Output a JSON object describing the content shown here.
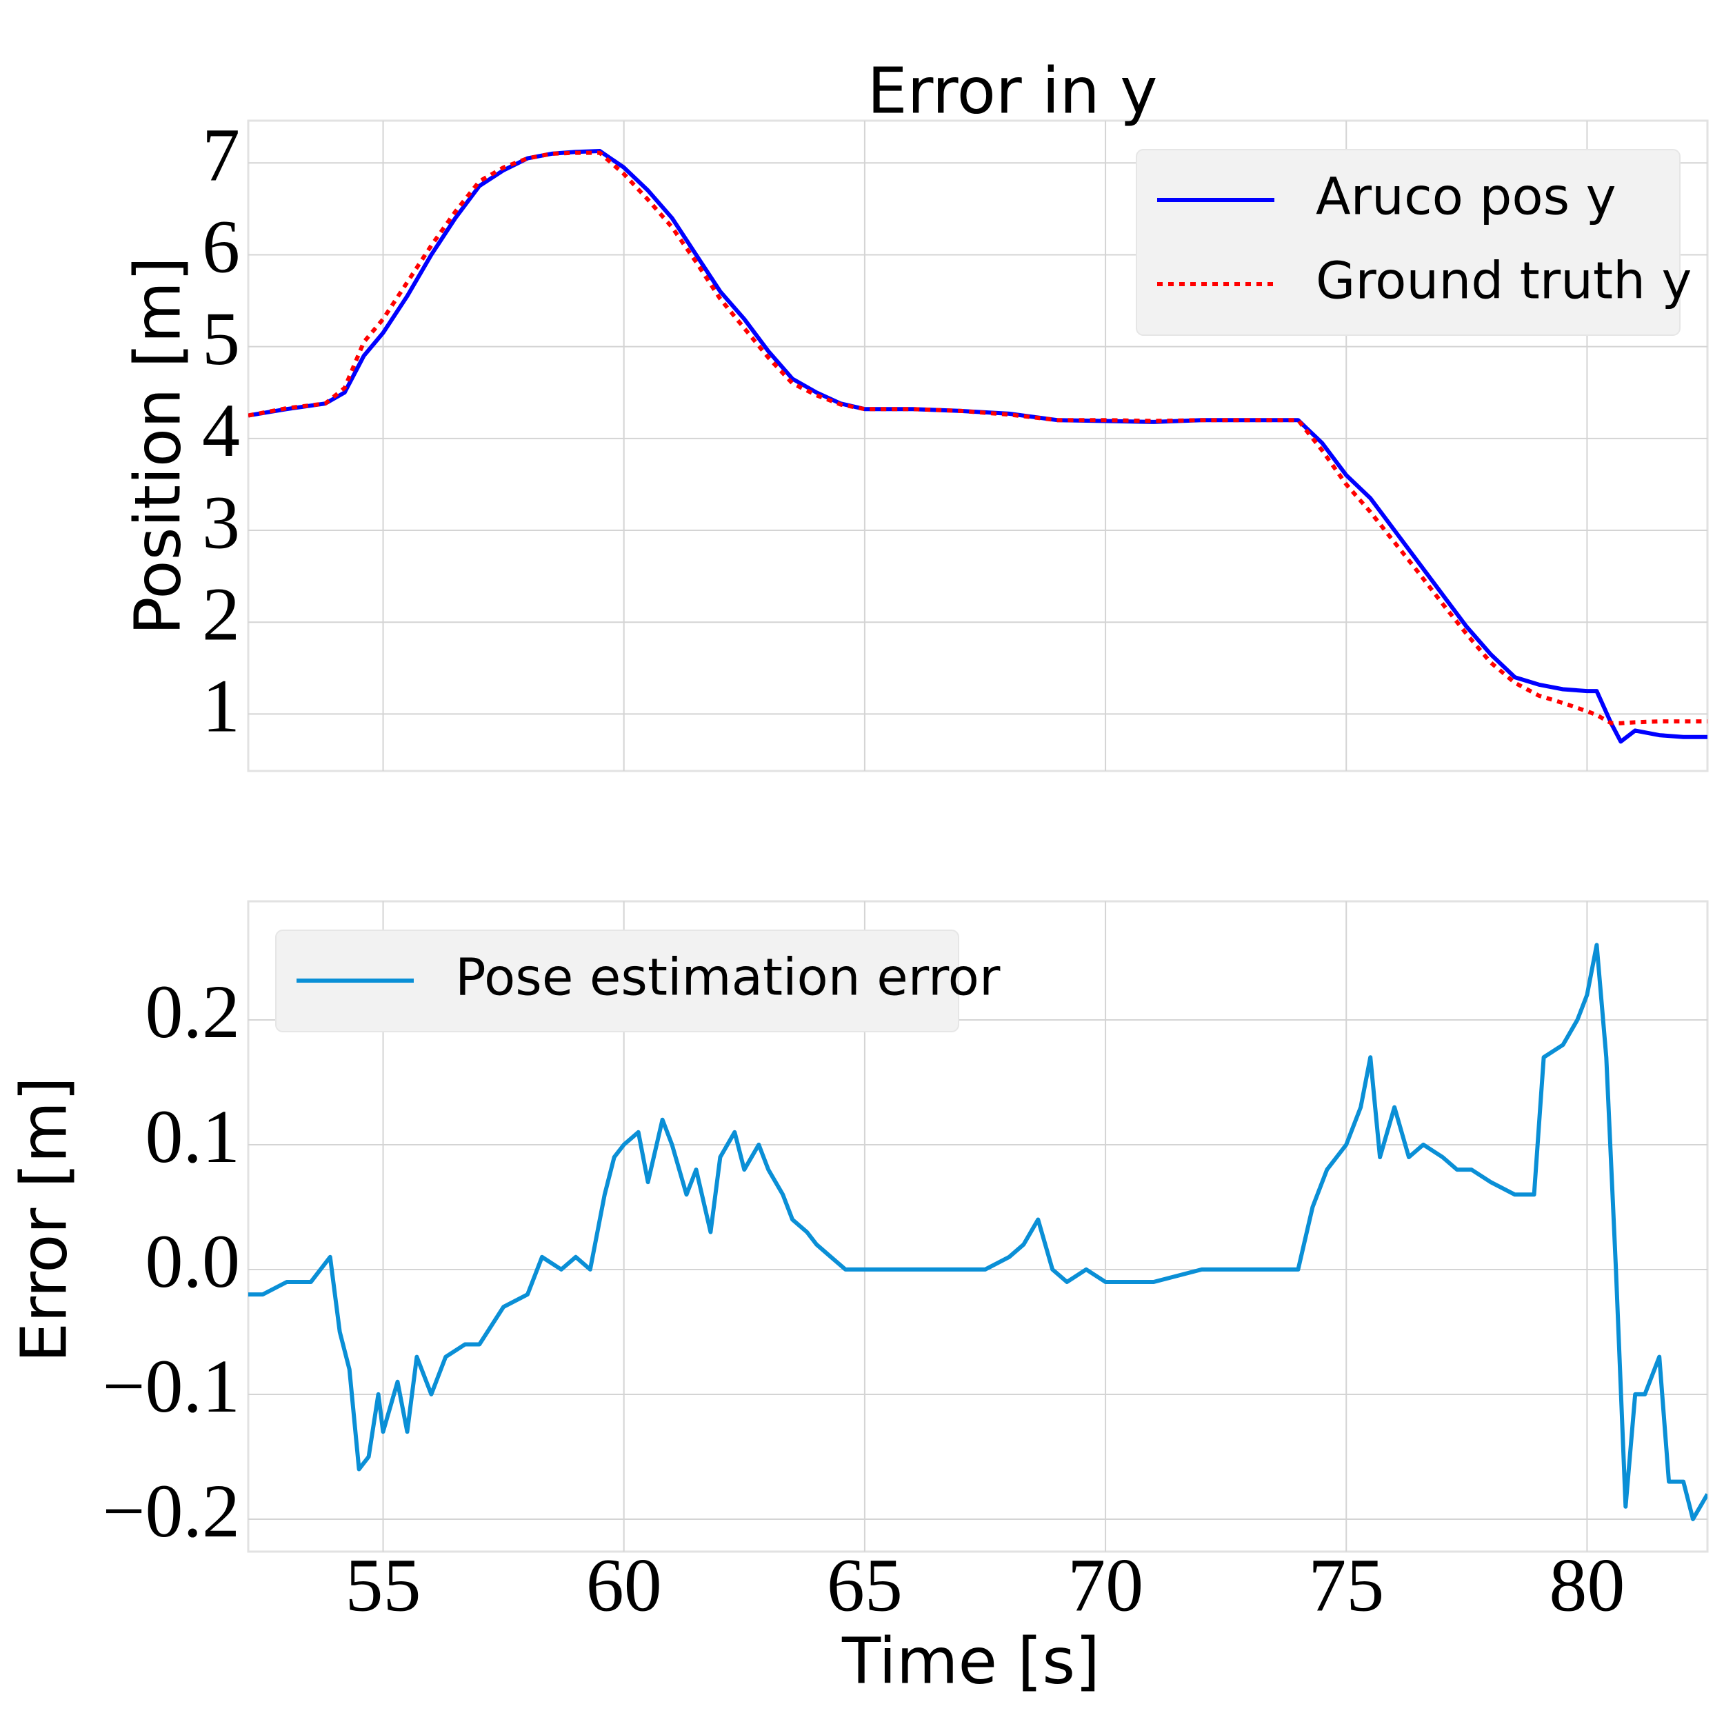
{
  "chart_data": [
    {
      "type": "line",
      "title": "Error in y",
      "ylabel": "Position [m]",
      "x": [
        52.2,
        53,
        53.8,
        54.2,
        54.6,
        55,
        55.5,
        56,
        56.5,
        57,
        57.5,
        58,
        58.5,
        59,
        59.5,
        60,
        60.5,
        61,
        61.5,
        62,
        62.5,
        63,
        63.5,
        64,
        64.5,
        65,
        66,
        67,
        68,
        69,
        70,
        71,
        72,
        73,
        74,
        74.5,
        75,
        75.5,
        76,
        76.5,
        77,
        77.5,
        78,
        78.5,
        79,
        79.5,
        80,
        80.2,
        80.5,
        80.7,
        81,
        81.5,
        82,
        82.5
      ],
      "series": [
        {
          "name": "Aruco pos y",
          "color": "#0000ff",
          "linestyle": "solid",
          "values": [
            4.25,
            4.32,
            4.38,
            4.5,
            4.9,
            5.15,
            5.55,
            6.0,
            6.4,
            6.75,
            6.92,
            7.05,
            7.1,
            7.12,
            7.13,
            6.95,
            6.7,
            6.4,
            6.0,
            5.6,
            5.3,
            4.95,
            4.65,
            4.5,
            4.38,
            4.32,
            4.32,
            4.3,
            4.27,
            4.2,
            4.19,
            4.18,
            4.2,
            4.2,
            4.2,
            3.95,
            3.6,
            3.35,
            3.0,
            2.65,
            2.3,
            1.95,
            1.65,
            1.4,
            1.32,
            1.27,
            1.25,
            1.25,
            0.9,
            0.7,
            0.82,
            0.77,
            0.75,
            0.75
          ]
        },
        {
          "name": "Ground truth y",
          "color": "#ff0000",
          "linestyle": "dotted",
          "values": [
            4.25,
            4.33,
            4.38,
            4.55,
            5.05,
            5.3,
            5.7,
            6.1,
            6.47,
            6.8,
            6.95,
            7.05,
            7.1,
            7.11,
            7.11,
            6.88,
            6.6,
            6.3,
            5.92,
            5.52,
            5.2,
            4.88,
            4.6,
            4.47,
            4.37,
            4.32,
            4.32,
            4.3,
            4.26,
            4.2,
            4.2,
            4.19,
            4.2,
            4.2,
            4.2,
            3.87,
            3.5,
            3.2,
            2.87,
            2.54,
            2.2,
            1.87,
            1.56,
            1.34,
            1.2,
            1.12,
            1.03,
            0.99,
            0.9,
            0.9,
            0.91,
            0.92,
            0.92,
            0.92
          ]
        }
      ],
      "xlim": [
        52.2,
        82.5
      ],
      "xticks": [
        55,
        60,
        65,
        70,
        75,
        80
      ],
      "show_xtick_labels": false,
      "ylim": [
        0.38,
        7.46
      ],
      "yticks": [
        1,
        2,
        3,
        4,
        5,
        6,
        7
      ],
      "grid": true,
      "legend": "upper right"
    },
    {
      "type": "line",
      "xlabel": "Time [s]",
      "ylabel": "Error [m]",
      "x": [
        52.2,
        52.5,
        53,
        53.5,
        53.9,
        54.1,
        54.3,
        54.5,
        54.7,
        54.9,
        55,
        55.3,
        55.5,
        55.7,
        56,
        56.3,
        56.7,
        57,
        57.5,
        58,
        58.3,
        58.7,
        59,
        59.3,
        59.6,
        59.8,
        60,
        60.3,
        60.5,
        60.8,
        61,
        61.3,
        61.5,
        61.8,
        62,
        62.3,
        62.5,
        62.8,
        63,
        63.3,
        63.5,
        63.8,
        64,
        64.3,
        64.6,
        65,
        66,
        67,
        67.5,
        68,
        68.3,
        68.6,
        68.9,
        69.2,
        69.6,
        70,
        71,
        72,
        73,
        74,
        74.3,
        74.6,
        75,
        75.3,
        75.5,
        75.7,
        76,
        76.3,
        76.6,
        77,
        77.3,
        77.6,
        78,
        78.5,
        78.9,
        79.1,
        79.5,
        79.8,
        80,
        80.2,
        80.4,
        80.6,
        80.8,
        81,
        81.2,
        81.5,
        81.7,
        82,
        82.2,
        82.5
      ],
      "series": [
        {
          "name": "Pose estimation error",
          "color": "#0a8fd6",
          "linestyle": "solid",
          "values": [
            -0.02,
            -0.02,
            -0.01,
            -0.01,
            0.01,
            -0.05,
            -0.08,
            -0.16,
            -0.15,
            -0.1,
            -0.13,
            -0.09,
            -0.13,
            -0.07,
            -0.1,
            -0.07,
            -0.06,
            -0.06,
            -0.03,
            -0.02,
            0.01,
            0.0,
            0.01,
            0.0,
            0.06,
            0.09,
            0.1,
            0.11,
            0.07,
            0.12,
            0.1,
            0.06,
            0.08,
            0.03,
            0.09,
            0.11,
            0.08,
            0.1,
            0.08,
            0.06,
            0.04,
            0.03,
            0.02,
            0.01,
            0.0,
            0.0,
            0.0,
            0.0,
            0.0,
            0.01,
            0.02,
            0.04,
            0.0,
            -0.01,
            0.0,
            -0.01,
            -0.01,
            0.0,
            0.0,
            0.0,
            0.05,
            0.08,
            0.1,
            0.13,
            0.17,
            0.09,
            0.13,
            0.09,
            0.1,
            0.09,
            0.08,
            0.08,
            0.07,
            0.06,
            0.06,
            0.17,
            0.18,
            0.2,
            0.22,
            0.26,
            0.17,
            0.0,
            -0.19,
            -0.1,
            -0.1,
            -0.07,
            -0.17,
            -0.17,
            -0.2,
            -0.18
          ]
        }
      ],
      "xlim": [
        52.2,
        82.5
      ],
      "xticks": [
        55,
        60,
        65,
        70,
        75,
        80
      ],
      "show_xtick_labels": true,
      "ylim": [
        -0.226,
        0.295
      ],
      "yticks": [
        {
          "value": -0.2,
          "label": "−0.2"
        },
        {
          "value": -0.1,
          "label": "−0.1"
        },
        {
          "value": 0,
          "label": "0.0"
        },
        0.1,
        0.2
      ],
      "grid": true,
      "legend": "upper left"
    }
  ]
}
